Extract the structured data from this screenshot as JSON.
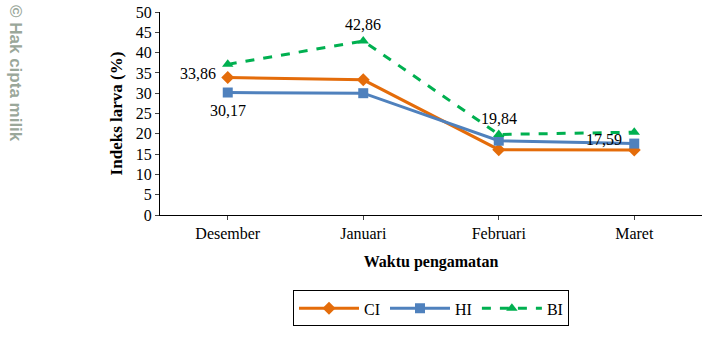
{
  "chart_data": {
    "type": "line",
    "x_label": "Waktu pengamatan",
    "y_label": "Indeks larva (%)",
    "categories": [
      "Desember",
      "Januari",
      "Februari",
      "Maret"
    ],
    "series": [
      {
        "name": "CI",
        "color": "#e46c0a",
        "marker": "diamond",
        "line_style": "solid",
        "values": [
          33.86,
          33.3,
          16.1,
          16.0
        ]
      },
      {
        "name": "HI",
        "color": "#4f81bd",
        "marker": "square",
        "line_style": "solid",
        "values": [
          30.17,
          30.0,
          18.3,
          17.59
        ]
      },
      {
        "name": "BI",
        "color": "#00b050",
        "marker": "triangle-up",
        "line_style": "dash",
        "values": [
          37.1,
          42.86,
          19.84,
          20.4
        ]
      }
    ],
    "annotations": [
      {
        "text": "33,86",
        "x": "Desember",
        "y": 33.86
      },
      {
        "text": "30,17",
        "x": "Desember",
        "y": 30.17
      },
      {
        "text": "42,86",
        "x": "Januari",
        "y": 42.86
      },
      {
        "text": "19,84",
        "x": "Februari",
        "y": 19.84
      },
      {
        "text": "17,59",
        "x": "Maret",
        "y": 17.59
      }
    ],
    "ylim": [
      0,
      50
    ],
    "yticks": [
      0,
      5,
      10,
      15,
      20,
      25,
      30,
      35,
      40,
      45,
      50
    ],
    "grid": false,
    "legend": "bottom",
    "watermark": "© Hak cipta milik"
  }
}
